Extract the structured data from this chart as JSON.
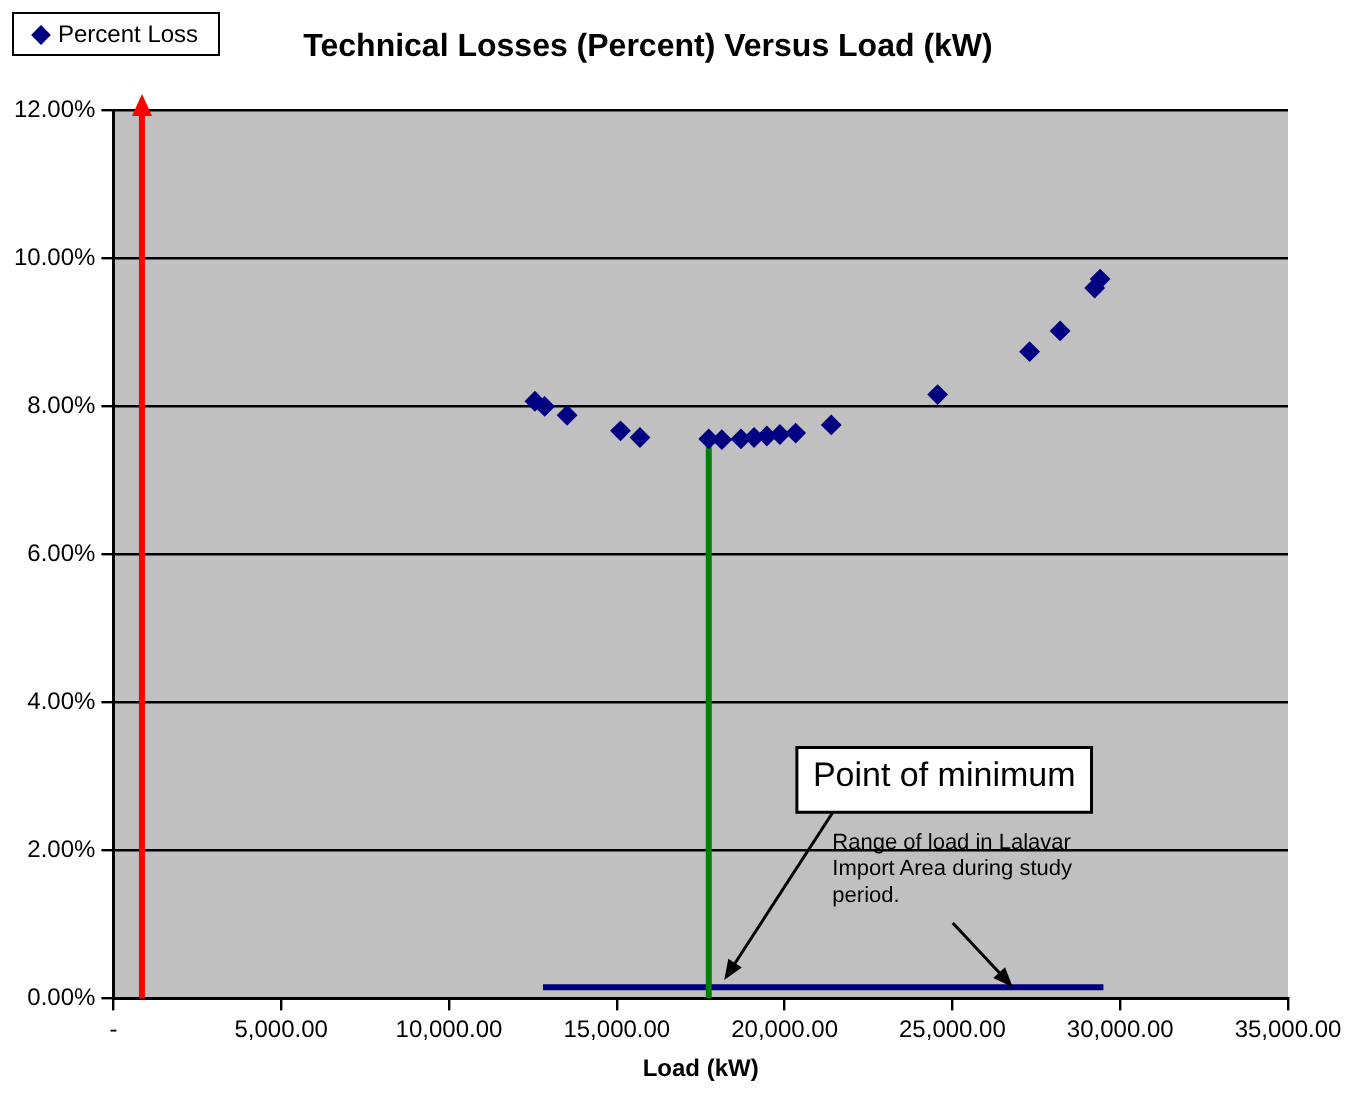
{
  "chart_data": {
    "type": "scatter",
    "title": "Technical Losses (Percent) Versus Load (kW)",
    "xlabel": "Load (kW)",
    "xlim": [
      0,
      35000
    ],
    "xticks": [
      {
        "value": 0,
        "label": "-"
      },
      {
        "value": 5000,
        "label": "5,000.00"
      },
      {
        "value": 10000,
        "label": "10,000.00"
      },
      {
        "value": 15000,
        "label": "15,000.00"
      },
      {
        "value": 20000,
        "label": "20,000.00"
      },
      {
        "value": 25000,
        "label": "25,000.00"
      },
      {
        "value": 30000,
        "label": "30,000.00"
      },
      {
        "value": 35000,
        "label": "35,000.00"
      }
    ],
    "ylim": [
      0,
      12
    ],
    "yticks": [
      {
        "value": 0,
        "label": "0.00%"
      },
      {
        "value": 2,
        "label": "2.00%"
      },
      {
        "value": 4,
        "label": "4.00%"
      },
      {
        "value": 6,
        "label": "6.00%"
      },
      {
        "value": 8,
        "label": "8.00%"
      },
      {
        "value": 10,
        "label": "10.00%"
      },
      {
        "value": 12,
        "label": "12.00%"
      }
    ],
    "grid": "y",
    "legend": "top left",
    "series": [
      {
        "name": "Percent Loss",
        "type": "scatter",
        "color": "#000080",
        "marker": "diamond",
        "x": [
          12560,
          12850,
          13520,
          15110,
          15690,
          17740,
          18130,
          18700,
          19090,
          19470,
          19860,
          20330,
          21390,
          24560,
          27300,
          28210,
          29240,
          29400
        ],
        "values": [
          8.07,
          8.0,
          7.88,
          7.67,
          7.58,
          7.56,
          7.55,
          7.56,
          7.58,
          7.6,
          7.62,
          7.64,
          7.75,
          8.16,
          8.74,
          9.02,
          9.6,
          9.72
        ]
      },
      {
        "type": "line",
        "color": "#008000",
        "x": [
          17740,
          17740
        ],
        "values": [
          0,
          7.56
        ]
      },
      {
        "type": "line",
        "color": "#000080",
        "x": [
          12800,
          29500
        ],
        "values": [
          0.15,
          0.15
        ]
      }
    ],
    "ref_lines": [
      {
        "axis": "x",
        "value": 850,
        "color": "#ff0000"
      }
    ],
    "annotations": [
      {
        "text": "Point of minimum",
        "x": 18200,
        "y": 0.25
      },
      {
        "text": "Range of load in Lalavar Import Area during study period.",
        "x": 26800,
        "y": 0.15
      }
    ]
  }
}
